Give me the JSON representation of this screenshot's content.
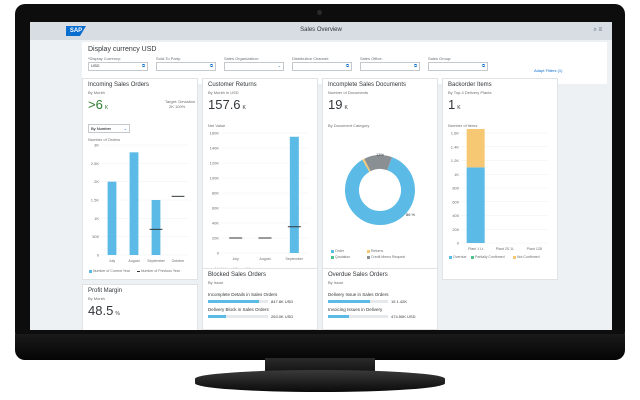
{
  "shell": {
    "logo": "SAP",
    "title": "Sales Overview",
    "icons": "⌕  ≡"
  },
  "filters": {
    "title": "Display currency USD",
    "fields": [
      {
        "label": "*Display Currency:",
        "value": "USD"
      },
      {
        "label": "Sold-To Party:",
        "value": ""
      },
      {
        "label": "Sales Organization:",
        "value": ""
      },
      {
        "label": "Distribution Channel:",
        "value": ""
      },
      {
        "label": "Sales Office:",
        "value": ""
      },
      {
        "label": "Sales Group:",
        "value": ""
      }
    ],
    "adapt": "Adapt Filters (1)"
  },
  "cards": {
    "incoming": {
      "title": "Incoming Sales Orders",
      "sub": "By Month",
      "kpi": ">6",
      "unit": "K",
      "target": "Target: Deviation",
      "target_vals": "2K   100%",
      "dropdown": "By Number",
      "axis_title": "Number of Orders",
      "legend": [
        "Number of Current Year",
        "Number of Previous Year"
      ]
    },
    "returns": {
      "title": "Customer Returns",
      "sub": "By Month in USD",
      "kpi": "157.6",
      "unit": "K",
      "axis_title": "Net Value",
      "legend": [
        "Net Value of Current Year",
        "Net Value of Previous Year"
      ]
    },
    "incomplete": {
      "title": "Incomplete Sales Documents",
      "sub": "Number of Documents",
      "kpi": "19",
      "unit": "K",
      "axis_title": "By Document Category",
      "legend": [
        "Order",
        "Returns",
        "Quotation",
        "Credit Memo Request"
      ]
    },
    "backorder": {
      "title": "Backorder Items",
      "sub": "By Top-4 Delivery Plants",
      "kpi": "1",
      "unit": "K",
      "axis_title": "Number of items",
      "legend": [
        "Overdue",
        "Partially Confirmed",
        "Not Confirmed"
      ]
    },
    "profit": {
      "title": "Profit Margin",
      "sub": "By Month",
      "kpi": "48.5",
      "unit": "%"
    },
    "blocked": {
      "title": "Blocked Sales Orders",
      "sub": "By Issue",
      "rows": [
        {
          "label": "Incomplete Details in Sales Orders",
          "value": "847.8K USD",
          "fill": 0.85
        },
        {
          "label": "Delivery Block in Sales Orders",
          "value": "263.0K USD",
          "fill": 0.3
        }
      ]
    },
    "overdue": {
      "title": "Overdue Sales Orders",
      "sub": "By Issue",
      "rows": [
        {
          "label": "Delivery Issue in Sales Orders",
          "value": "15   1.42K",
          "fill": 0.7
        },
        {
          "label": "Invoicing Issues in Delivery",
          "value": "474.50K USD",
          "fill": 0.35
        }
      ]
    }
  },
  "colors": {
    "accent": "#5cbae6",
    "orange": "#f7c873",
    "brand": "#0a6ed1",
    "green": "#4cc38a"
  },
  "chart_data": [
    {
      "type": "bar",
      "title": "Incoming Sales Orders",
      "ylabel": "Number of Orders",
      "categories": [
        "July",
        "August",
        "September",
        "October"
      ],
      "series": [
        {
          "name": "Number of Current Year",
          "values": [
            2000,
            2800,
            1500,
            0
          ]
        },
        {
          "name": "Number of Previous Year",
          "values": [
            null,
            null,
            700,
            1600
          ]
        }
      ],
      "yticks": [
        "0",
        "500",
        "1K",
        "1.5K",
        "2K",
        "2.5K",
        "3K"
      ],
      "ylim": [
        0,
        3000
      ]
    },
    {
      "type": "bar",
      "title": "Customer Returns",
      "ylabel": "Net Value",
      "categories": [
        "July",
        "August",
        "September"
      ],
      "series": [
        {
          "name": "Net Value of Current Year",
          "values": [
            0,
            0,
            155000
          ]
        },
        {
          "name": "Net Value of Previous Year",
          "values": [
            20000,
            20000,
            35000
          ]
        }
      ],
      "yticks": [
        "0",
        "20K",
        "40K",
        "60K",
        "80K",
        "100K",
        "120K",
        "140K",
        "160K"
      ],
      "ylim": [
        0,
        160000
      ]
    },
    {
      "type": "pie",
      "title": "Incomplete Sales Documents",
      "categories": [
        "Order",
        "Returns",
        "Quotation",
        "Credit Memo Request"
      ],
      "values": [
        86,
        1,
        0,
        13
      ],
      "labels": [
        "86 %",
        "13%"
      ]
    },
    {
      "type": "bar",
      "title": "Backorder Items",
      "ylabel": "Number of items",
      "categories": [
        "Plant 1 Lt",
        "Plant 2S 1L",
        "Plant 1Z8"
      ],
      "series": [
        {
          "name": "Overdue",
          "values": [
            1100,
            0,
            0
          ]
        },
        {
          "name": "Partially Confirmed",
          "values": [
            0,
            0,
            0
          ]
        },
        {
          "name": "Not Confirmed",
          "values": [
            600,
            0,
            0
          ]
        }
      ],
      "yticks": [
        "0",
        "200",
        "400",
        "600",
        "800",
        "1K",
        "1.2K",
        "1.4K",
        "1.6K"
      ],
      "ylim": [
        0,
        1600
      ]
    }
  ]
}
